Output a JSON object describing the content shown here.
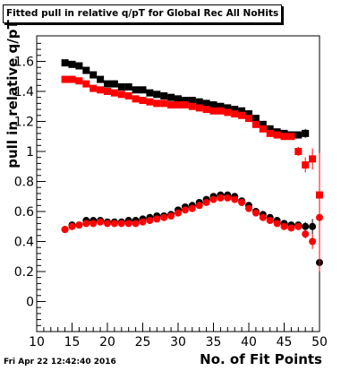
{
  "canvas_footer": "Fri Apr 22 12:42:40 2016",
  "chart_data": {
    "type": "scatter",
    "title": "Fitted pull in relative q/pT for Global Rec All NoHits",
    "xlabel": "No. of Fit Points",
    "ylabel": "pull in relative q/pT",
    "xlim": [
      10,
      50
    ],
    "ylim": [
      -0.2,
      1.77
    ],
    "x_ticks": [
      10,
      15,
      20,
      25,
      30,
      35,
      40,
      45,
      50
    ],
    "y_ticks": [
      0,
      0.2,
      0.4,
      0.6,
      0.8,
      1,
      1.2,
      1.4,
      1.6
    ],
    "x_tick_labels": [
      "10",
      "15",
      "20",
      "25",
      "30",
      "35",
      "40",
      "45",
      "50"
    ],
    "y_tick_labels": [
      "0",
      "0.2",
      "0.4",
      "0.6",
      "0.8",
      "1",
      "1.2",
      "1.4",
      "1.6"
    ],
    "grid": false,
    "legend": "none",
    "series": [
      {
        "group": "width",
        "color": "#000000",
        "marker": "square",
        "x": [
          14,
          15,
          16,
          17,
          18,
          19,
          20,
          21,
          22,
          23,
          24,
          25,
          26,
          27,
          28,
          29,
          30,
          31,
          32,
          33,
          34,
          35,
          36,
          37,
          38,
          39,
          40,
          41,
          42,
          43,
          44,
          45,
          46,
          47,
          48
        ],
        "y": [
          1.59,
          1.58,
          1.57,
          1.54,
          1.51,
          1.48,
          1.45,
          1.45,
          1.43,
          1.43,
          1.41,
          1.41,
          1.39,
          1.38,
          1.37,
          1.36,
          1.35,
          1.34,
          1.34,
          1.33,
          1.32,
          1.31,
          1.3,
          1.29,
          1.28,
          1.27,
          1.25,
          1.22,
          1.18,
          1.15,
          1.13,
          1.12,
          1.11,
          1.11,
          1.12
        ],
        "err": [
          0.01,
          0.01,
          0.01,
          0.01,
          0.01,
          0.01,
          0.01,
          0.01,
          0.01,
          0.01,
          0.01,
          0.01,
          0.01,
          0.01,
          0.01,
          0.01,
          0.01,
          0.01,
          0.01,
          0.01,
          0.01,
          0.01,
          0.01,
          0.01,
          0.01,
          0.01,
          0.01,
          0.01,
          0.01,
          0.01,
          0.01,
          0.01,
          0.01,
          0.02,
          0.03
        ]
      },
      {
        "group": "width",
        "color": "#ff0000",
        "marker": "square",
        "x": [
          14,
          15,
          16,
          17,
          18,
          19,
          20,
          21,
          22,
          23,
          24,
          25,
          26,
          27,
          28,
          29,
          30,
          31,
          32,
          33,
          34,
          35,
          36,
          37,
          38,
          39,
          40,
          41,
          42,
          43,
          44,
          45,
          46,
          47,
          48,
          49,
          50
        ],
        "y": [
          1.48,
          1.48,
          1.47,
          1.45,
          1.42,
          1.41,
          1.4,
          1.39,
          1.38,
          1.37,
          1.35,
          1.34,
          1.33,
          1.32,
          1.32,
          1.31,
          1.31,
          1.31,
          1.3,
          1.29,
          1.28,
          1.27,
          1.27,
          1.26,
          1.25,
          1.24,
          1.22,
          1.18,
          1.15,
          1.12,
          1.11,
          1.1,
          1.1,
          1.0,
          0.91,
          0.95,
          0.71
        ],
        "err": [
          0.01,
          0.01,
          0.01,
          0.01,
          0.01,
          0.01,
          0.01,
          0.01,
          0.01,
          0.01,
          0.01,
          0.01,
          0.01,
          0.01,
          0.01,
          0.01,
          0.01,
          0.01,
          0.01,
          0.01,
          0.01,
          0.01,
          0.01,
          0.01,
          0.01,
          0.01,
          0.01,
          0.01,
          0.01,
          0.01,
          0.01,
          0.01,
          0.02,
          0.03,
          0.05,
          0.07,
          0.28
        ]
      },
      {
        "group": "mean",
        "color": "#000000",
        "marker": "circle",
        "x": [
          14,
          15,
          16,
          17,
          18,
          19,
          20,
          21,
          22,
          23,
          24,
          25,
          26,
          27,
          28,
          29,
          30,
          31,
          32,
          33,
          34,
          35,
          36,
          37,
          38,
          39,
          40,
          41,
          42,
          43,
          44,
          45,
          46,
          47,
          48,
          49,
          50
        ],
        "y": [
          0.48,
          0.51,
          0.51,
          0.54,
          0.54,
          0.54,
          0.53,
          0.53,
          0.53,
          0.54,
          0.54,
          0.55,
          0.56,
          0.57,
          0.57,
          0.58,
          0.61,
          0.63,
          0.64,
          0.66,
          0.68,
          0.7,
          0.71,
          0.71,
          0.7,
          0.67,
          0.64,
          0.6,
          0.58,
          0.56,
          0.54,
          0.52,
          0.51,
          0.51,
          0.5,
          0.5,
          0.26
        ],
        "err": [
          0.01,
          0.01,
          0.01,
          0.01,
          0.01,
          0.01,
          0.01,
          0.01,
          0.01,
          0.01,
          0.01,
          0.01,
          0.01,
          0.01,
          0.01,
          0.01,
          0.01,
          0.01,
          0.01,
          0.01,
          0.01,
          0.01,
          0.01,
          0.01,
          0.01,
          0.01,
          0.01,
          0.01,
          0.01,
          0.01,
          0.01,
          0.01,
          0.02,
          0.02,
          0.03,
          0.05,
          0.07
        ]
      },
      {
        "group": "mean",
        "color": "#ff0000",
        "marker": "circle",
        "x": [
          14,
          15,
          16,
          17,
          18,
          19,
          20,
          21,
          22,
          23,
          24,
          25,
          26,
          27,
          28,
          29,
          30,
          31,
          32,
          33,
          34,
          35,
          36,
          37,
          38,
          39,
          40,
          41,
          42,
          43,
          44,
          45,
          46,
          47,
          48,
          49,
          50
        ],
        "y": [
          0.48,
          0.5,
          0.51,
          0.52,
          0.52,
          0.53,
          0.52,
          0.52,
          0.52,
          0.52,
          0.52,
          0.53,
          0.54,
          0.55,
          0.56,
          0.57,
          0.59,
          0.61,
          0.62,
          0.64,
          0.66,
          0.68,
          0.69,
          0.69,
          0.68,
          0.66,
          0.62,
          0.59,
          0.56,
          0.54,
          0.52,
          0.5,
          0.49,
          0.5,
          0.45,
          0.4,
          0.56
        ],
        "err": [
          0.01,
          0.01,
          0.01,
          0.01,
          0.01,
          0.01,
          0.01,
          0.01,
          0.01,
          0.01,
          0.01,
          0.01,
          0.01,
          0.01,
          0.01,
          0.01,
          0.01,
          0.01,
          0.01,
          0.01,
          0.01,
          0.01,
          0.01,
          0.01,
          0.01,
          0.01,
          0.01,
          0.01,
          0.01,
          0.01,
          0.01,
          0.01,
          0.02,
          0.02,
          0.03,
          0.05,
          0.36
        ]
      }
    ]
  }
}
